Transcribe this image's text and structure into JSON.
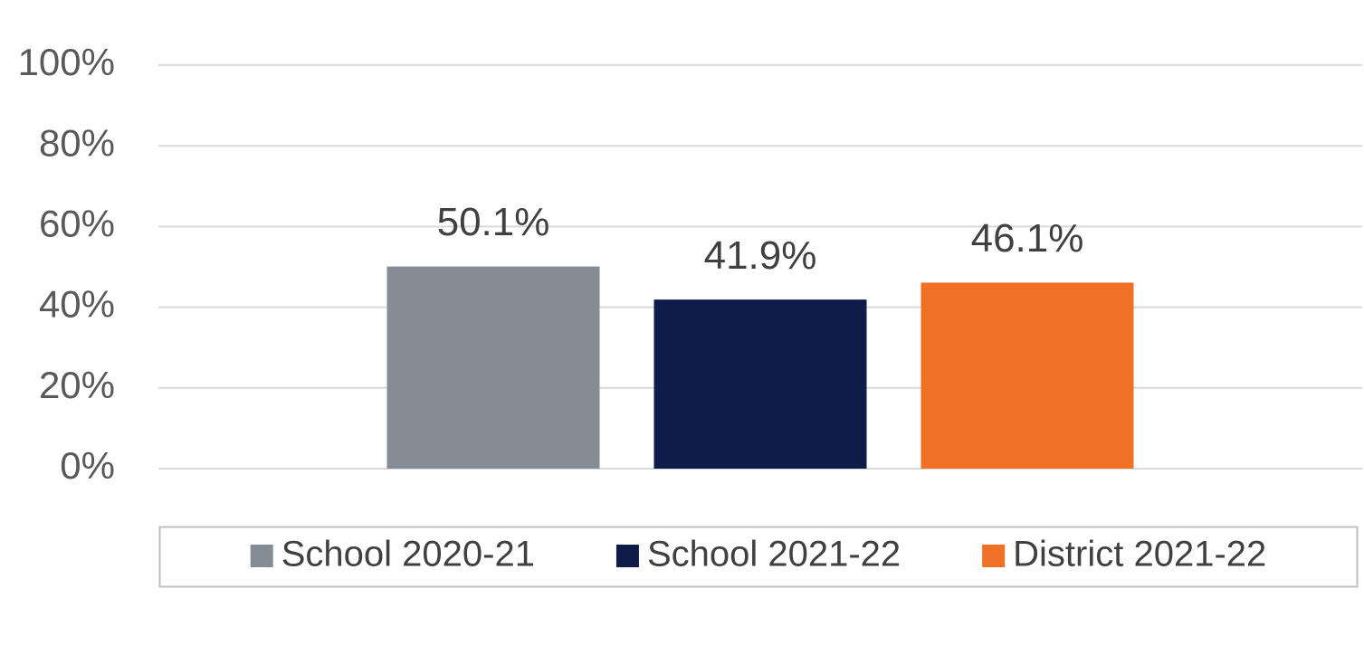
{
  "chart_data": {
    "type": "bar",
    "categories": [
      null
    ],
    "series": [
      {
        "name": "School 2020-21",
        "color": "#868c96",
        "values": [
          50.1
        ],
        "value_labels": [
          "50.1%"
        ]
      },
      {
        "name": "School 2021-22",
        "color": "#0f1c4a",
        "values": [
          41.9
        ],
        "value_labels": [
          "41.9%"
        ]
      },
      {
        "name": "District 2021-22",
        "color": "#f07026",
        "values": [
          46.1
        ],
        "value_labels": [
          "46.1%"
        ]
      }
    ],
    "ylim": [
      0,
      100
    ],
    "yticks": [
      {
        "value": 0,
        "label": "0%"
      },
      {
        "value": 20,
        "label": "20%"
      },
      {
        "value": 40,
        "label": "40%"
      },
      {
        "value": 60,
        "label": "60%"
      },
      {
        "value": 80,
        "label": "80%"
      },
      {
        "value": 100,
        "label": "100%"
      }
    ],
    "grid": true,
    "legend": "bottom"
  }
}
